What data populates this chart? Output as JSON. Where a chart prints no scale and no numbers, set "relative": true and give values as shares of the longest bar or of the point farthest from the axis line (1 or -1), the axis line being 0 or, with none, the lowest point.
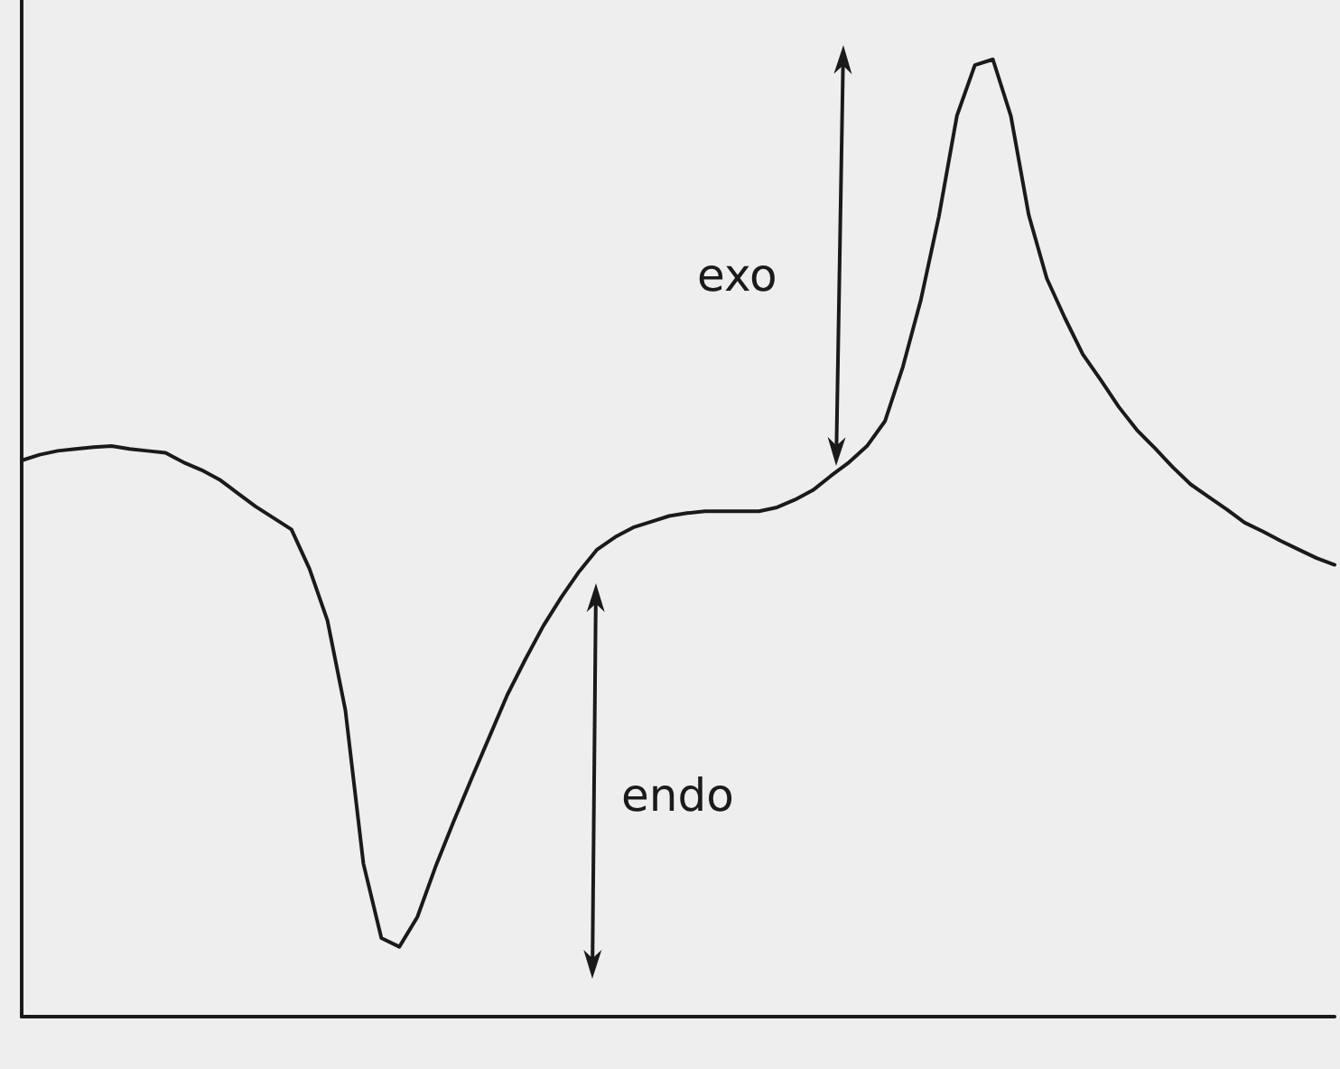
{
  "chart_data": {
    "type": "line",
    "relative": true,
    "categories": [
      null,
      null,
      null,
      null,
      null,
      null,
      null,
      null,
      null,
      null,
      null,
      null,
      null,
      null,
      null,
      null,
      null,
      null,
      null,
      null,
      null,
      null,
      null,
      null,
      null,
      null,
      null,
      null,
      null,
      null,
      null,
      null,
      null,
      null,
      null,
      null,
      null,
      null,
      null,
      null,
      null,
      null,
      null,
      null,
      null,
      null,
      null,
      null,
      null,
      null,
      null,
      null,
      null,
      null,
      null,
      null,
      null,
      null,
      null,
      null,
      null,
      null,
      null,
      null,
      null,
      null,
      null,
      null,
      null,
      null,
      null,
      null,
      null,
      null
    ],
    "values": [
      0.581,
      0.587,
      0.591,
      0.593,
      0.595,
      0.596,
      0.593,
      0.591,
      0.589,
      0.579,
      0.571,
      0.561,
      0.547,
      0.533,
      0.521,
      0.509,
      0.468,
      0.414,
      0.32,
      0.16,
      0.082,
      0.073,
      0.104,
      0.156,
      0.203,
      0.248,
      0.292,
      0.336,
      0.373,
      0.408,
      0.438,
      0.465,
      0.488,
      0.501,
      0.511,
      0.517,
      0.523,
      0.526,
      0.528,
      0.528,
      0.528,
      0.528,
      0.532,
      0.54,
      0.55,
      0.565,
      0.579,
      0.596,
      0.622,
      0.679,
      0.749,
      0.836,
      0.941,
      0.994,
      1,
      0.941,
      0.837,
      0.771,
      0.73,
      0.692,
      0.665,
      0.637,
      0.613,
      0.594,
      0.574,
      0.556,
      0.543,
      0.53,
      0.516,
      0.507,
      0.497,
      0.488,
      0.479,
      0.472
    ],
    "color": "#1a1a1a",
    "annotations": [
      "exo",
      "endo"
    ]
  }
}
